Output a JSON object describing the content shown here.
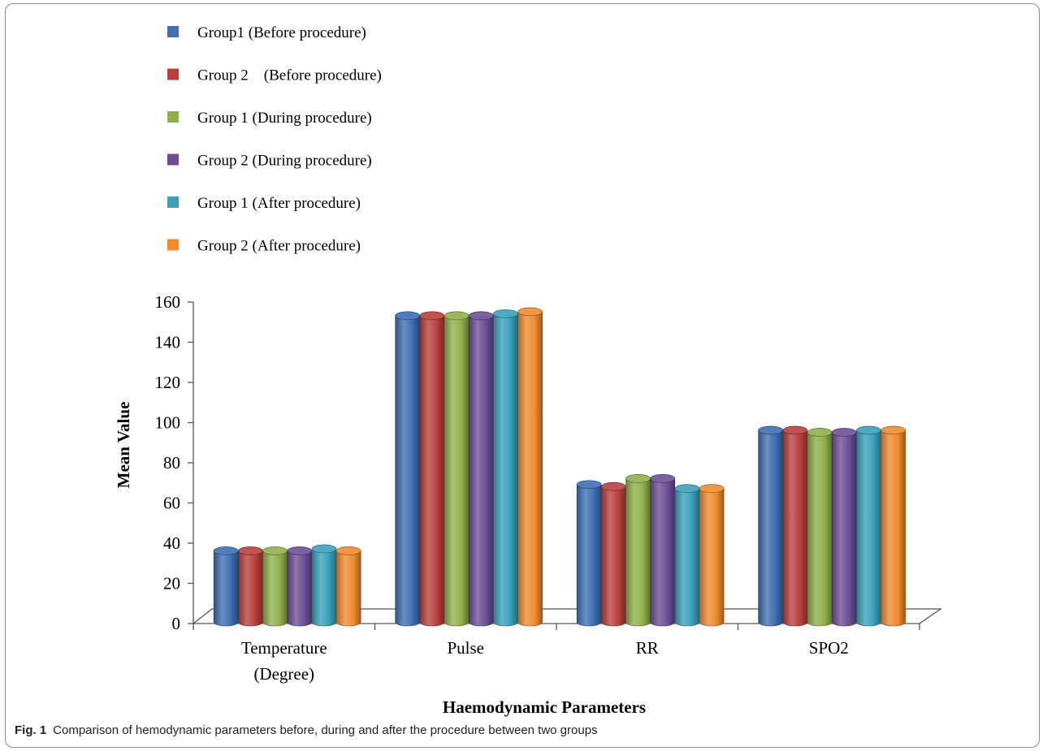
{
  "chart_data": {
    "type": "bar",
    "title": "",
    "xlabel": "Haemodynamic Parameters",
    "ylabel": "Mean Value",
    "ylim": [
      0,
      160
    ],
    "yticks": [
      "0",
      "20",
      "40",
      "60",
      "80",
      "100",
      "120",
      "140",
      "160"
    ],
    "categories": [
      [
        "Temperature",
        "(Degree)"
      ],
      [
        "Pulse"
      ],
      [
        "RR"
      ],
      [
        "SPO2"
      ]
    ],
    "series": [
      {
        "name": "Group1 (Before procedure)",
        "color": "#3f6fb5",
        "values": [
          37,
          154,
          70,
          97
        ]
      },
      {
        "name": "Group 2    (Before procedure)",
        "color": "#b8403c",
        "values": [
          37,
          154,
          69,
          97
        ]
      },
      {
        "name": "Group 1 (During procedure)",
        "color": "#8fb14b",
        "values": [
          37,
          154,
          73,
          96
        ]
      },
      {
        "name": "Group 2 (During procedure)",
        "color": "#6d4e94",
        "values": [
          37,
          154,
          73,
          96
        ]
      },
      {
        "name": "Group 1 (After procedure)",
        "color": "#3aa1bb",
        "values": [
          38,
          155,
          68,
          97
        ]
      },
      {
        "name": "Group 2 (After procedure)",
        "color": "#ef8b2e",
        "values": [
          37,
          156,
          68,
          97
        ]
      }
    ],
    "legend_position": "top"
  },
  "caption": {
    "label": "Fig. 1",
    "text": "Comparison of hemodynamic parameters before, during and after the procedure between two groups"
  }
}
